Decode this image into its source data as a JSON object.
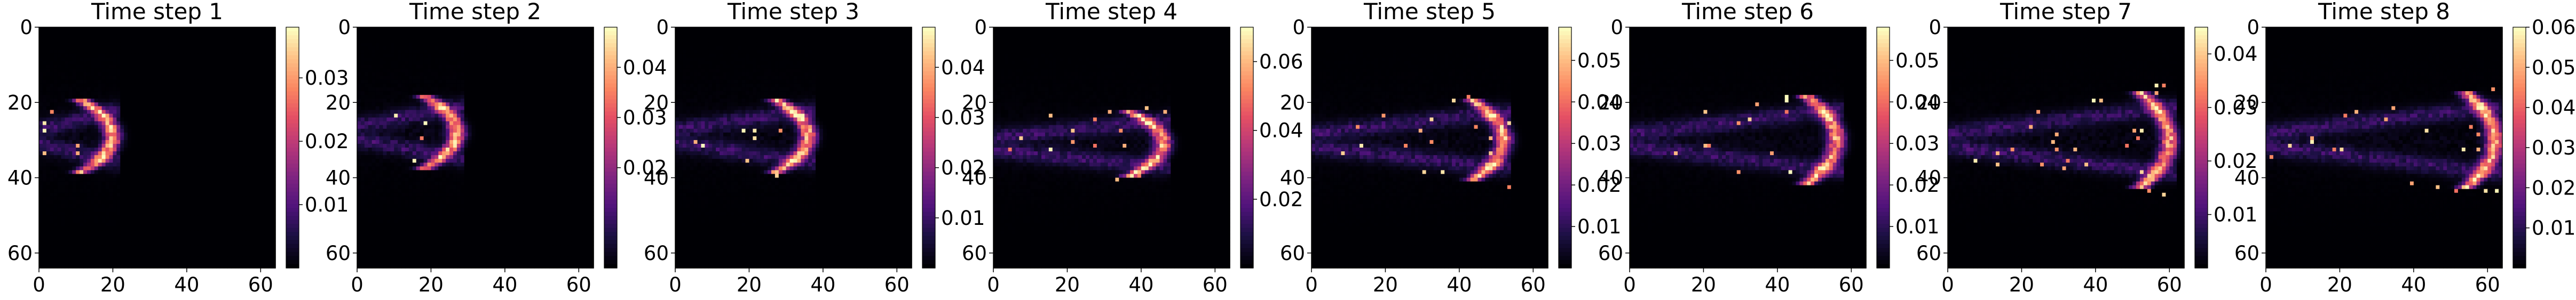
{
  "chart_data": [
    {
      "type": "heatmap",
      "title": "Time step 1",
      "xlim": [
        0,
        64
      ],
      "ylim": [
        0,
        64
      ],
      "y_inverted": true,
      "x_ticks": [
        "0",
        "20",
        "40",
        "60"
      ],
      "y_ticks": [
        "0",
        "20",
        "40",
        "60"
      ],
      "colormap": "magma",
      "colorbar": {
        "range": [
          0,
          0.038
        ],
        "ticks": [
          0.01,
          0.02,
          0.03
        ],
        "tick_labels": [
          "0.01",
          "0.02",
          "0.03"
        ]
      },
      "field": {
        "front_x": 20,
        "front_center_y": 29,
        "front_half_height": 8,
        "peak": 0.038
      }
    },
    {
      "type": "heatmap",
      "title": "Time step 2",
      "xlim": [
        0,
        64
      ],
      "ylim": [
        0,
        64
      ],
      "y_inverted": true,
      "x_ticks": [
        "0",
        "20",
        "40",
        "60"
      ],
      "y_ticks": [
        "0",
        "20",
        "40",
        "60"
      ],
      "colormap": "magma",
      "colorbar": {
        "range": [
          0,
          0.048
        ],
        "ticks": [
          0.02,
          0.03,
          0.04
        ],
        "tick_labels": [
          "0.02",
          "0.03",
          "0.04"
        ]
      },
      "field": {
        "front_x": 27,
        "front_center_y": 28,
        "front_half_height": 8,
        "peak": 0.048
      }
    },
    {
      "type": "heatmap",
      "title": "Time step 3",
      "xlim": [
        0,
        64
      ],
      "ylim": [
        0,
        64
      ],
      "y_inverted": true,
      "x_ticks": [
        "0",
        "20",
        "40",
        "60"
      ],
      "y_ticks": [
        "0",
        "20",
        "40",
        "60"
      ],
      "colormap": "magma",
      "colorbar": {
        "range": [
          0,
          0.048
        ],
        "ticks": [
          0.01,
          0.02,
          0.03,
          0.04
        ],
        "tick_labels": [
          "0.01",
          "0.02",
          "0.03",
          "0.04"
        ]
      },
      "field": {
        "front_x": 36,
        "front_center_y": 29,
        "front_half_height": 8,
        "peak": 0.048
      }
    },
    {
      "type": "heatmap",
      "title": "Time step 4",
      "xlim": [
        0,
        64
      ],
      "ylim": [
        0,
        64
      ],
      "y_inverted": true,
      "x_ticks": [
        "0",
        "20",
        "40",
        "60"
      ],
      "y_ticks": [
        "0",
        "20",
        "40",
        "60"
      ],
      "colormap": "magma",
      "colorbar": {
        "range": [
          0,
          0.07
        ],
        "ticks": [
          0.02,
          0.04,
          0.06
        ],
        "tick_labels": [
          "0.02",
          "0.04",
          "0.06"
        ]
      },
      "field": {
        "front_x": 46,
        "front_center_y": 31,
        "front_half_height": 7,
        "peak": 0.07
      }
    },
    {
      "type": "heatmap",
      "title": "Time step 5",
      "xlim": [
        0,
        64
      ],
      "ylim": [
        0,
        64
      ],
      "y_inverted": true,
      "x_ticks": [
        "0",
        "20",
        "40",
        "60"
      ],
      "y_ticks": [
        "0",
        "20",
        "40",
        "60"
      ],
      "colormap": "magma",
      "colorbar": {
        "range": [
          0,
          0.058
        ],
        "ticks": [
          0.01,
          0.02,
          0.03,
          0.04,
          0.05
        ],
        "tick_labels": [
          "0.01",
          "0.02",
          "0.03",
          "0.04",
          "0.05"
        ]
      },
      "field": {
        "front_x": 52,
        "front_center_y": 30,
        "front_half_height": 9,
        "peak": 0.058
      }
    },
    {
      "type": "heatmap",
      "title": "Time step 6",
      "xlim": [
        0,
        64
      ],
      "ylim": [
        0,
        64
      ],
      "y_inverted": true,
      "x_ticks": [
        "0",
        "20",
        "40",
        "60"
      ],
      "y_ticks": [
        "0",
        "20",
        "40",
        "60"
      ],
      "colormap": "magma",
      "colorbar": {
        "range": [
          0,
          0.058
        ],
        "ticks": [
          0.01,
          0.02,
          0.03,
          0.04,
          0.05
        ],
        "tick_labels": [
          "0.01",
          "0.02",
          "0.03",
          "0.04",
          "0.05"
        ]
      },
      "field": {
        "front_x": 56,
        "front_center_y": 30,
        "front_half_height": 10,
        "peak": 0.058
      }
    },
    {
      "type": "heatmap",
      "title": "Time step 7",
      "xlim": [
        0,
        64
      ],
      "ylim": [
        0,
        64
      ],
      "y_inverted": true,
      "x_ticks": [
        "0",
        "20",
        "40",
        "60"
      ],
      "y_ticks": [
        "0",
        "20",
        "40",
        "60"
      ],
      "colormap": "magma",
      "colorbar": {
        "range": [
          0,
          0.045
        ],
        "ticks": [
          0.01,
          0.02,
          0.03,
          0.04
        ],
        "tick_labels": [
          "0.01",
          "0.02",
          "0.03",
          "0.04"
        ]
      },
      "field": {
        "front_x": 60,
        "front_center_y": 30,
        "front_half_height": 11,
        "peak": 0.045
      }
    },
    {
      "type": "heatmap",
      "title": "Time step 8",
      "xlim": [
        0,
        64
      ],
      "ylim": [
        0,
        64
      ],
      "y_inverted": true,
      "x_ticks": [
        "0",
        "20",
        "40",
        "60"
      ],
      "y_ticks": [
        "0",
        "20",
        "40",
        "60"
      ],
      "colormap": "magma",
      "colorbar": {
        "range": [
          0,
          0.06
        ],
        "ticks": [
          0.01,
          0.02,
          0.03,
          0.04,
          0.05,
          0.06
        ],
        "tick_labels": [
          "0.01",
          "0.02",
          "0.03",
          "0.04",
          "0.05",
          "0.06"
        ]
      },
      "field": {
        "front_x": 62,
        "front_center_y": 30,
        "front_half_height": 11,
        "peak": 0.06
      }
    }
  ]
}
